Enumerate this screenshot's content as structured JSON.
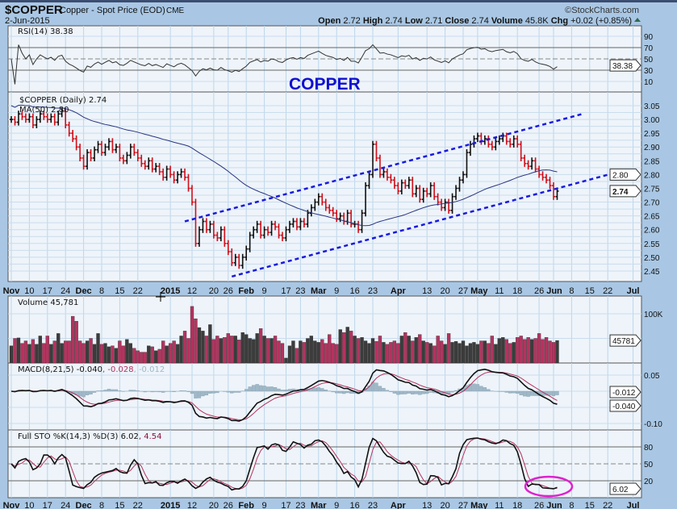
{
  "header": {
    "symbol": "$COPPER",
    "name": "Copper - Spot Price (EOD)",
    "exchange": "CME",
    "date": "2-Jun-2015",
    "copyright": "©StockCharts.com",
    "open_label": "Open",
    "open": "2.72",
    "high_label": "High",
    "high": "2.74",
    "low_label": "Low",
    "low": "2.71",
    "close_label": "Close",
    "close": "2.74",
    "volume_label": "Volume",
    "volume": "45.8K",
    "chg_label": "Chg",
    "chg": "+0.02 (+0.85%)",
    "chg_icon": "up-triangle-icon"
  },
  "annotation": "COPPER",
  "rsi": {
    "legend": "RSI(14) 38.38",
    "ticks": [
      "90",
      "70",
      "50",
      "30",
      "10"
    ],
    "tag": "38.38"
  },
  "price": {
    "legend": "$COPPER (Daily) 2.74",
    "ma_legend": "MA(50) 2.80",
    "ticks": [
      "3.05",
      "3.00",
      "2.95",
      "2.90",
      "2.85",
      "2.80",
      "2.75",
      "2.70",
      "2.65",
      "2.60",
      "2.55",
      "2.50",
      "2.45"
    ],
    "tag_ma": "2.80",
    "tag_close": "2.74"
  },
  "volume": {
    "legend": "Volume 45,781",
    "ticks": [
      "100K"
    ],
    "tag": "45781"
  },
  "macd": {
    "legend_main": "MACD(8,21,5) -0.040",
    "legend_signal": ", -0.028",
    "legend_hist": ", -0.012",
    "ticks": [
      "0.05",
      "-0.10"
    ],
    "tag_hist": "-0.012",
    "tag_macd": "-0.040"
  },
  "sto": {
    "legend_main": "Full STO %K(14,3) %D(3) 6.02",
    "legend_d": ", 4.54",
    "ticks": [
      "80",
      "50",
      "20"
    ],
    "tag": "6.02"
  },
  "date_ticks": [
    {
      "label": "Nov",
      "date": "2014-11-03"
    },
    {
      "label": "10",
      "date": "2014-11-10"
    },
    {
      "label": "17",
      "date": "2014-11-17"
    },
    {
      "label": "24",
      "date": "2014-11-24"
    },
    {
      "label": "Dec",
      "date": "2014-12-01"
    },
    {
      "label": "8",
      "date": "2014-12-08"
    },
    {
      "label": "15",
      "date": "2014-12-15"
    },
    {
      "label": "22",
      "date": "2014-12-22"
    },
    {
      "label": "2015",
      "date": "2015-01-02"
    },
    {
      "label": "12",
      "date": "2015-01-12"
    },
    {
      "label": "20",
      "date": "2015-01-20"
    },
    {
      "label": "26",
      "date": "2015-01-26"
    },
    {
      "label": "Feb",
      "date": "2015-02-02"
    },
    {
      "label": "9",
      "date": "2015-02-09"
    },
    {
      "label": "17",
      "date": "2015-02-17"
    },
    {
      "label": "23",
      "date": "2015-02-23"
    },
    {
      "label": "Mar",
      "date": "2015-03-02"
    },
    {
      "label": "9",
      "date": "2015-03-09"
    },
    {
      "label": "16",
      "date": "2015-03-16"
    },
    {
      "label": "23",
      "date": "2015-03-23"
    },
    {
      "label": "Apr",
      "date": "2015-04-01"
    },
    {
      "label": "13",
      "date": "2015-04-13"
    },
    {
      "label": "20",
      "date": "2015-04-20"
    },
    {
      "label": "27",
      "date": "2015-04-27"
    },
    {
      "label": "May",
      "date": "2015-05-01"
    },
    {
      "label": "11",
      "date": "2015-05-11"
    },
    {
      "label": "18",
      "date": "2015-05-18"
    },
    {
      "label": "26",
      "date": "2015-05-26"
    },
    {
      "label": "Jun",
      "date": "2015-06-01"
    },
    {
      "label": "8",
      "date": "2015-06-08"
    },
    {
      "label": "15",
      "date": "2015-06-15"
    },
    {
      "label": "22",
      "date": "2015-06-22"
    },
    {
      "label": "Jul",
      "date": "2015-07-01"
    }
  ],
  "colors": {
    "up": "#111111",
    "down": "#d0101c",
    "ma": "#2a3580",
    "channel": "#1a1adf",
    "vol_up": "#3c3c3c",
    "vol_down": "#b4335f",
    "signal": "#b4335f",
    "hist": "#9fb8c8",
    "highlight": "#e020d0",
    "annotation": "#1010d0"
  },
  "chart_data": {
    "type": "ohlc",
    "start_date": "2014-11-03",
    "closes": [
      3.0,
      2.99,
      3.02,
      3.01,
      3.0,
      3.01,
      2.98,
      3.0,
      3.02,
      3.01,
      3.0,
      3.01,
      2.99,
      3.02,
      3.03,
      2.98,
      2.95,
      2.93,
      2.9,
      2.86,
      2.83,
      2.88,
      2.86,
      2.89,
      2.91,
      2.88,
      2.9,
      2.92,
      2.89,
      2.9,
      2.86,
      2.85,
      2.87,
      2.9,
      2.88,
      2.86,
      2.84,
      2.83,
      2.85,
      2.82,
      2.83,
      2.81,
      2.79,
      2.82,
      2.8,
      2.78,
      2.8,
      2.81,
      2.79,
      2.75,
      2.7,
      2.55,
      2.6,
      2.63,
      2.6,
      2.62,
      2.58,
      2.57,
      2.6,
      2.55,
      2.52,
      2.48,
      2.5,
      2.47,
      2.5,
      2.53,
      2.58,
      2.6,
      2.62,
      2.58,
      2.6,
      2.59,
      2.62,
      2.61,
      2.58,
      2.57,
      2.6,
      2.62,
      2.63,
      2.61,
      2.63,
      2.62,
      2.66,
      2.68,
      2.7,
      2.72,
      2.7,
      2.68,
      2.67,
      2.66,
      2.64,
      2.65,
      2.63,
      2.66,
      2.62,
      2.62,
      2.6,
      2.66,
      2.76,
      2.8,
      2.91,
      2.86,
      2.8,
      2.81,
      2.79,
      2.78,
      2.76,
      2.74,
      2.77,
      2.76,
      2.78,
      2.73,
      2.75,
      2.71,
      2.74,
      2.73,
      2.76,
      2.72,
      2.7,
      2.68,
      2.7,
      2.67,
      2.72,
      2.75,
      2.78,
      2.8,
      2.88,
      2.91,
      2.93,
      2.94,
      2.92,
      2.93,
      2.91,
      2.9,
      2.92,
      2.93,
      2.94,
      2.92,
      2.91,
      2.93,
      2.91,
      2.86,
      2.84,
      2.83,
      2.85,
      2.82,
      2.8,
      2.79,
      2.78,
      2.76,
      2.72,
      2.74
    ],
    "volume_k": [
      35,
      50,
      51,
      40,
      45,
      38,
      48,
      38,
      55,
      40,
      55,
      38,
      45,
      60,
      40,
      45,
      45,
      95,
      85,
      45,
      40,
      45,
      50,
      38,
      60,
      38,
      40,
      33,
      35,
      30,
      45,
      35,
      48,
      40,
      30,
      25,
      22,
      22,
      35,
      33,
      25,
      28,
      45,
      35,
      40,
      45,
      38,
      55,
      65,
      50,
      115,
      90,
      72,
      65,
      55,
      78,
      48,
      55,
      50,
      52,
      60,
      55,
      55,
      47,
      62,
      58,
      50,
      48,
      60,
      70,
      55,
      50,
      50,
      55,
      45,
      40,
      10,
      35,
      45,
      30,
      45,
      42,
      50,
      55,
      45,
      42,
      48,
      40,
      58,
      40,
      38,
      68,
      62,
      73,
      65,
      55,
      50,
      52,
      45,
      40,
      50,
      44,
      55,
      42,
      38,
      42,
      45,
      40,
      55,
      62,
      55,
      45,
      52,
      58,
      45,
      42,
      40,
      35,
      55,
      45,
      38,
      60,
      42,
      44,
      40,
      45,
      35,
      40,
      42,
      38,
      45,
      45,
      40,
      55,
      38,
      50,
      52,
      48,
      40,
      42,
      52,
      55,
      48,
      52,
      48,
      50,
      60,
      48,
      52,
      45,
      42,
      45.781
    ],
    "moving_average_period": 50,
    "trendlines": [
      {
        "from": {
          "date": "2015-01-08",
          "price": 2.63
        },
        "to": {
          "date": "2015-06-11",
          "price": 3.02
        }
      },
      {
        "from": {
          "date": "2015-01-27",
          "price": 2.43
        },
        "to": {
          "date": "2015-06-25",
          "price": 2.81
        }
      }
    ],
    "price_range": [
      2.42,
      3.08
    ],
    "rsi_levels": [
      70,
      50,
      30
    ],
    "sto_levels": [
      80,
      50,
      20
    ],
    "grid": true
  }
}
